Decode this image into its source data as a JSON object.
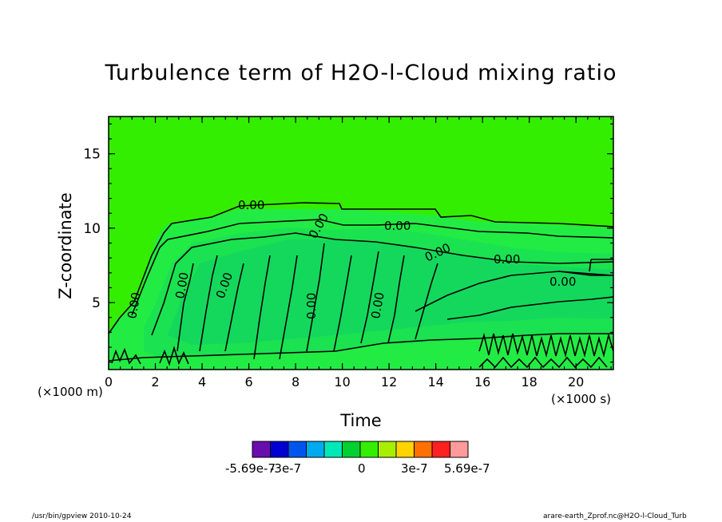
{
  "chart_data": {
    "type": "heatmap",
    "title": "Turbulence term of H2O-l-Cloud mixing ratio",
    "xlabel": "Time",
    "ylabel": "Z-coordinate",
    "x_unit": "(×1000 s)",
    "y_unit": "(×1000 m)",
    "xlim": [
      0,
      21.6
    ],
    "ylim": [
      0.5,
      17.5
    ],
    "x_ticks": [
      0,
      2,
      4,
      6,
      8,
      10,
      12,
      14,
      16,
      18,
      20
    ],
    "y_ticks": [
      5,
      10,
      15
    ],
    "contour_labels": [
      "0.00",
      "0.00",
      "0.00",
      "0.00",
      "0.00",
      "0.00",
      "0.00",
      "0.00",
      "0.00",
      "0.00",
      "0.00"
    ],
    "colorbar": {
      "colors": [
        "#6a0dad",
        "#0000d0",
        "#0055ee",
        "#00aaee",
        "#00e8b8",
        "#00d030",
        "#33ee00",
        "#a8ee00",
        "#ffd400",
        "#ff7000",
        "#ff2020",
        "#ff9a9a"
      ],
      "labels": [
        "-5.69e-7",
        "-3e-7",
        "0",
        "3e-7",
        "5.69e-7"
      ]
    }
  },
  "footer": {
    "left": "/usr/bin/gpview   2010-10-24",
    "right": "arare-earth_Zprof.nc@H2O-l-Cloud_Turb"
  }
}
